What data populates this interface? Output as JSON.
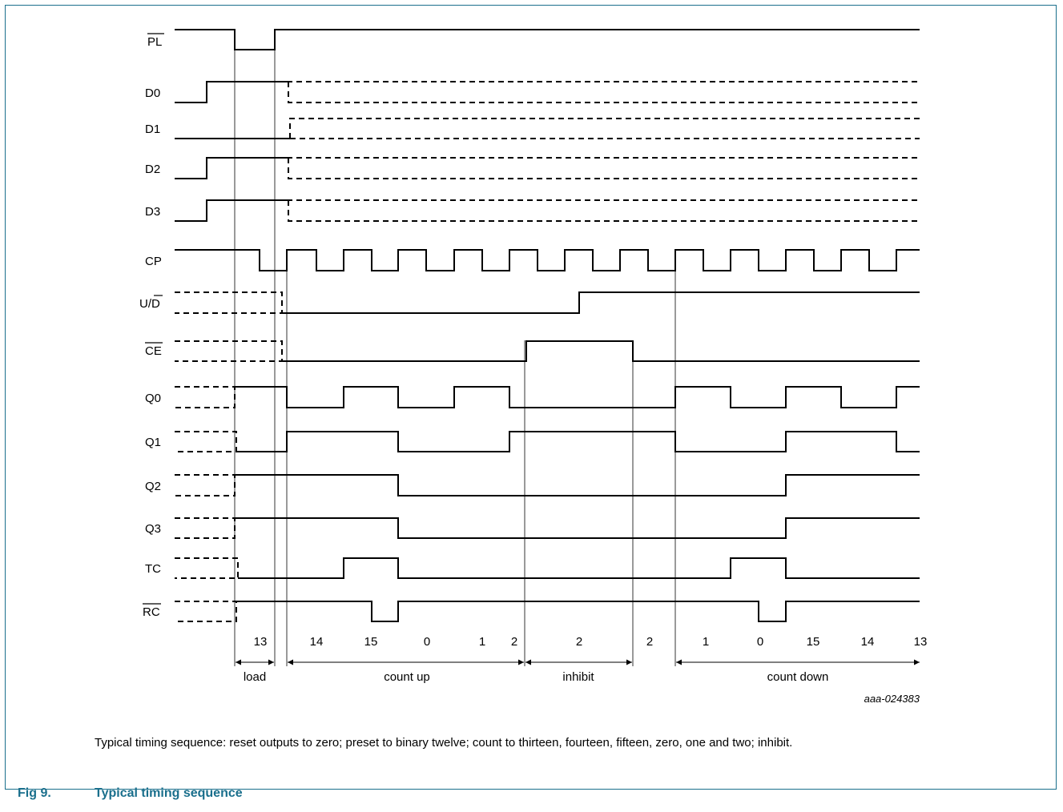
{
  "signals": [
    {
      "id": "pl",
      "label": "PL",
      "bar": true
    },
    {
      "id": "d0",
      "label": "D0",
      "bar": false
    },
    {
      "id": "d1",
      "label": "D1",
      "bar": false
    },
    {
      "id": "d2",
      "label": "D2",
      "bar": false
    },
    {
      "id": "d3",
      "label": "D3",
      "bar": false
    },
    {
      "id": "cp",
      "label": "CP",
      "bar": false
    },
    {
      "id": "ud",
      "label": "U/D",
      "bar": false,
      "bar_part": "D",
      "plain_part": "U/"
    },
    {
      "id": "ce",
      "label": "CE",
      "bar": true
    },
    {
      "id": "q0",
      "label": "Q0",
      "bar": false
    },
    {
      "id": "q1",
      "label": "Q1",
      "bar": false
    },
    {
      "id": "q2",
      "label": "Q2",
      "bar": false
    },
    {
      "id": "q3",
      "label": "Q3",
      "bar": false
    },
    {
      "id": "tc",
      "label": "TC",
      "bar": false
    },
    {
      "id": "rc",
      "label": "RC",
      "bar": true
    }
  ],
  "counts": [
    "13",
    "14",
    "15",
    "0",
    "1",
    "2",
    "2",
    "2",
    "1",
    "0",
    "15",
    "14",
    "13"
  ],
  "phases": [
    "load",
    "count up",
    "inhibit",
    "count down"
  ],
  "figure_code": "aaa-024383",
  "caption": "Typical timing sequence: reset outputs to zero; preset to binary twelve; count to thirteen, fourteen, fifteen, zero, one and two; inhibit.",
  "figure_number": "Fig 9.",
  "figure_title": "Typical timing sequence",
  "colors": {
    "line": "#000000",
    "title": "#1a6f8c",
    "border": "#1a6f8c"
  }
}
